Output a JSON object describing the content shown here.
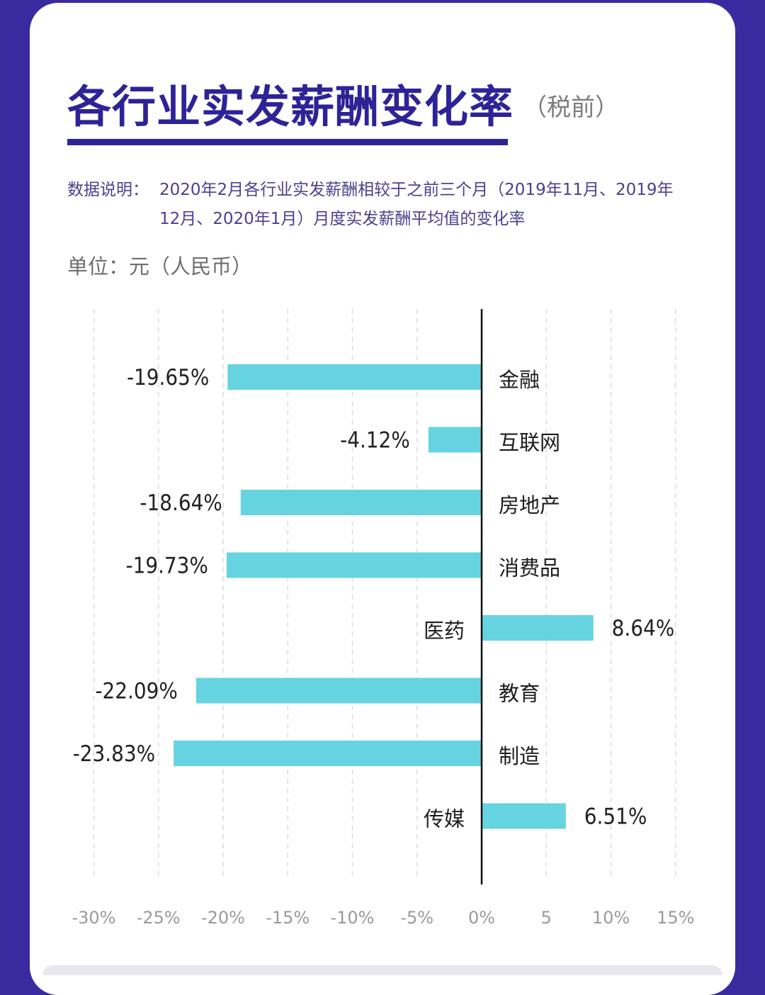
{
  "header": {
    "title": "各行业实发薪酬变化率",
    "subtitle": "（税前）",
    "note_label": "数据说明：",
    "note_text": "2020年2月各行业实发薪酬相较于之前三个月（2019年11月、2019年12月、2020年1月）月度实发薪酬平均值的变化率",
    "unit": "单位：元（人民币）"
  },
  "colors": {
    "background": "#3a2aa0",
    "title": "#2e2396",
    "bar": "#66d3e0"
  },
  "chart_data": {
    "type": "bar",
    "orientation": "horizontal",
    "categories": [
      "金融",
      "互联网",
      "房地产",
      "消费品",
      "医药",
      "教育",
      "制造",
      "传媒"
    ],
    "values": [
      -19.65,
      -4.12,
      -18.64,
      -19.73,
      8.64,
      -22.09,
      -23.83,
      6.51
    ],
    "value_labels": [
      "-19.65%",
      "-4.12%",
      "-18.64%",
      "-19.73%",
      "8.64%",
      "-22.09%",
      "-23.83%",
      "6.51%"
    ],
    "xlim": [
      -30,
      15
    ],
    "x_ticks": [
      -30,
      -25,
      -20,
      -15,
      -10,
      -5,
      0,
      5,
      10,
      15
    ],
    "x_tick_labels": [
      "-30%",
      "-25%",
      "-20%",
      "-15%",
      "-10%",
      "-5%",
      "0%",
      "5",
      "10%",
      "15%"
    ],
    "grid": true
  }
}
